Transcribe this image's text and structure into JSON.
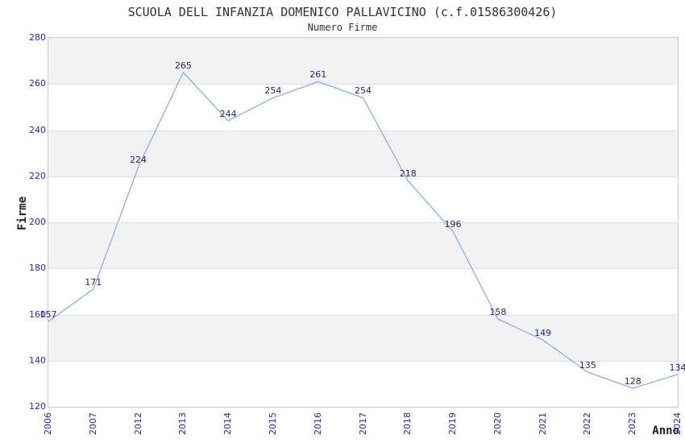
{
  "chart_data": {
    "type": "line",
    "title": "SCUOLA DELL INFANZIA DOMENICO PALLAVICINO (c.f.01586300426)",
    "subtitle": "Numero Firme",
    "xlabel": "Anno",
    "ylabel": "Firme",
    "categories": [
      "2006",
      "2007",
      "2012",
      "2013",
      "2014",
      "2015",
      "2016",
      "2017",
      "2018",
      "2019",
      "2020",
      "2021",
      "2022",
      "2023",
      "2024"
    ],
    "values": [
      157,
      171,
      224,
      265,
      244,
      254,
      261,
      254,
      218,
      196,
      158,
      149,
      135,
      128,
      134
    ],
    "ylim": [
      120,
      280
    ],
    "ytick_step": 20,
    "yticks": [
      280,
      260,
      240,
      220,
      200,
      180,
      160,
      140,
      120
    ],
    "grid": true,
    "legend": "none",
    "banded_background": true,
    "colors": {
      "line": "#79ade2",
      "data_label": "#1f1f78",
      "tick_label": "#2424d4",
      "band_gray": "#f2f2f2",
      "band_white": "#ffffff",
      "gridline": "#e0e0e0",
      "plot_border": "#cccccc",
      "title_text": "#333333",
      "axis_title": "#222222"
    }
  }
}
